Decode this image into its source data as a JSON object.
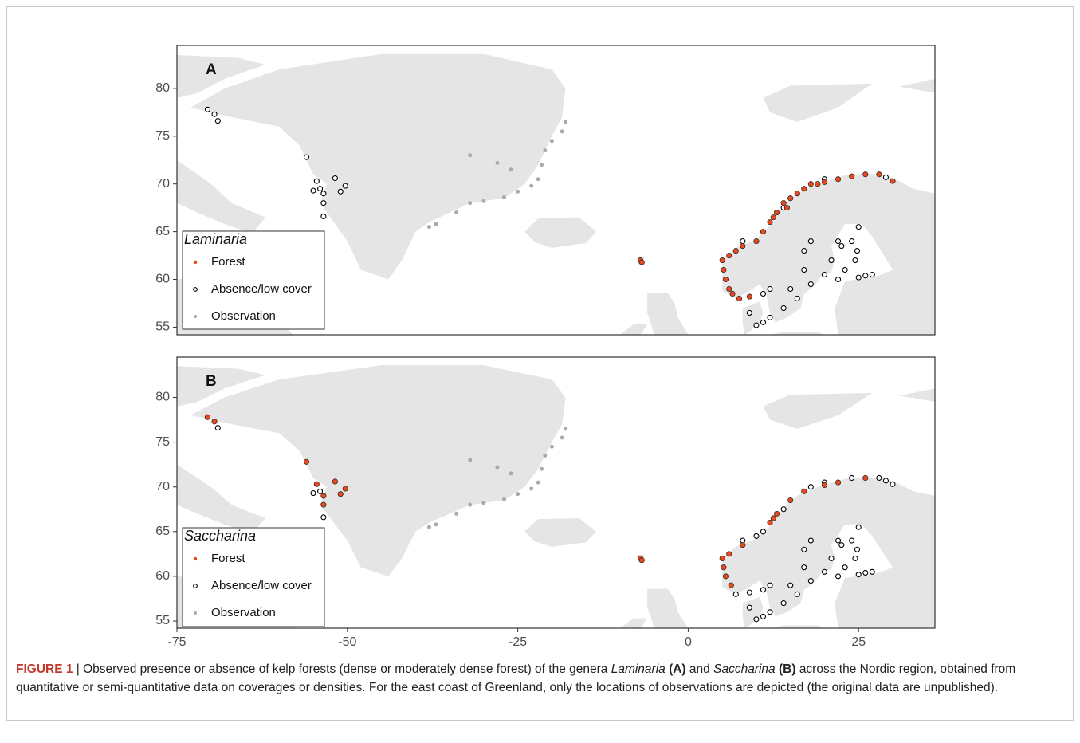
{
  "chart_data": [
    {
      "type": "scatter",
      "panel_label": "A",
      "legend_title": "Laminaria",
      "xlim": [
        -75,
        36.2
      ],
      "ylim": [
        54.2,
        84.5
      ],
      "yticks": [
        55,
        60,
        65,
        70,
        75,
        80
      ],
      "series": [
        {
          "name": "Forest",
          "color": "#e8491d",
          "x": [
            5.5,
            5.2,
            5,
            6,
            7,
            8,
            10,
            11,
            12,
            13,
            14,
            15,
            16,
            17,
            18,
            19,
            20,
            22,
            24,
            26,
            28,
            30,
            6,
            6.5,
            7.5,
            9,
            -7,
            -6.8,
            12.5,
            14.5
          ],
          "values": [
            60,
            61,
            62,
            62.5,
            63,
            63.5,
            64,
            65,
            66,
            67,
            68,
            68.5,
            69,
            69.5,
            70,
            70,
            70.2,
            70.5,
            70.8,
            71,
            71,
            70.3,
            59,
            58.5,
            58,
            58.2,
            62,
            61.8,
            66.5,
            67.5
          ]
        },
        {
          "name": "Absence/low cover",
          "color": "#000000",
          "x": [
            -70.5,
            -69.5,
            -69,
            -56,
            -54.5,
            -54,
            -53.5,
            -53.5,
            -53.5,
            -51.8,
            -51,
            -50.3,
            -55,
            22,
            21,
            20,
            22,
            25,
            27,
            25,
            24,
            24.5,
            17,
            18,
            16,
            14,
            12,
            11,
            10,
            9,
            17,
            18,
            15,
            12,
            11,
            8,
            14,
            20,
            29,
            23,
            26,
            24.8,
            22.5
          ],
          "values": [
            77.8,
            77.3,
            76.6,
            72.8,
            70.3,
            69.5,
            69,
            68,
            66.6,
            70.6,
            69.2,
            69.8,
            69.3,
            64,
            62,
            60.5,
            60,
            60.2,
            60.5,
            65.5,
            64,
            62,
            61,
            59.5,
            58,
            57,
            56,
            55.5,
            55.2,
            56.5,
            63,
            64,
            59,
            59,
            58.5,
            64,
            67.5,
            70.5,
            70.7,
            61,
            60.4,
            63,
            63.5
          ]
        },
        {
          "name": "Observation",
          "color": "#aaaaaa",
          "x": [
            -18,
            -18.5,
            -20,
            -21,
            -21.5,
            -22,
            -23,
            -25,
            -27,
            -30,
            -32,
            -34,
            -37,
            -38,
            -32,
            -28,
            -26
          ],
          "values": [
            76.5,
            75.5,
            74.5,
            73.5,
            72,
            70.5,
            69.8,
            69.2,
            68.6,
            68.2,
            68,
            67,
            65.8,
            65.5,
            73,
            72.2,
            71.5
          ]
        }
      ]
    },
    {
      "type": "scatter",
      "panel_label": "B",
      "legend_title": "Saccharina",
      "xlim": [
        -75,
        36.2
      ],
      "ylim": [
        54.2,
        84.5
      ],
      "yticks": [
        55,
        60,
        65,
        70,
        75,
        80
      ],
      "xticks": [
        -75,
        -50,
        -25,
        0,
        25
      ],
      "series": [
        {
          "name": "Forest",
          "color": "#e8491d",
          "x": [
            -70.5,
            -69.5,
            -56,
            -54.5,
            -53.5,
            -53.5,
            -51.8,
            -51,
            -50.3,
            5.5,
            5.2,
            5,
            6,
            8,
            12,
            13,
            15,
            17,
            20,
            22,
            26,
            -7,
            -6.8,
            12.5,
            6.3
          ],
          "values": [
            77.8,
            77.3,
            72.8,
            70.3,
            69,
            68,
            70.6,
            69.2,
            69.8,
            60,
            61,
            62,
            62.5,
            63.5,
            66,
            67,
            68.5,
            69.5,
            70.2,
            70.5,
            71,
            62,
            61.8,
            66.5,
            59
          ]
        },
        {
          "name": "Absence/low cover",
          "color": "#000000",
          "x": [
            -69,
            -54,
            -53.5,
            -55,
            22,
            21,
            20,
            22,
            25,
            27,
            25,
            24,
            24.5,
            17,
            18,
            16,
            14,
            12,
            11,
            10,
            9,
            17,
            18,
            15,
            12,
            11,
            8,
            14,
            20,
            29,
            23,
            26,
            24.8,
            22.5,
            10,
            11,
            18,
            24,
            28,
            30,
            7,
            9
          ],
          "values": [
            76.6,
            69.5,
            66.6,
            69.3,
            64,
            62,
            60.5,
            60,
            60.2,
            60.5,
            65.5,
            64,
            62,
            61,
            59.5,
            58,
            57,
            56,
            55.5,
            55.2,
            56.5,
            63,
            64,
            59,
            59,
            58.5,
            64,
            67.5,
            70.5,
            70.7,
            61,
            60.4,
            63,
            63.5,
            64.5,
            65,
            70,
            71,
            71,
            70.3,
            58,
            58.2
          ]
        },
        {
          "name": "Observation",
          "color": "#aaaaaa",
          "x": [
            -18,
            -18.5,
            -20,
            -21,
            -21.5,
            -22,
            -23,
            -25,
            -27,
            -30,
            -32,
            -34,
            -37,
            -38,
            -32,
            -28,
            -26
          ],
          "values": [
            76.5,
            75.5,
            74.5,
            73.5,
            72,
            70.5,
            69.8,
            69.2,
            68.6,
            68.2,
            68,
            67,
            65.8,
            65.5,
            73,
            72.2,
            71.5
          ]
        }
      ]
    }
  ],
  "caption": {
    "label": "FIGURE 1",
    "text1": "| Observed presence or absence of kelp forests (dense or moderately dense forest) of the genera",
    "genus1": "Laminaria",
    "panel1": "(A)",
    "and": "and",
    "genus2": "Saccharina",
    "panel2": "(B)",
    "text2": "across the Nordic region, obtained from quantitative or semi-quantitative data on coverages or densities. For the east coast of Greenland, only the locations of observations are depicted (the original data are unpublished)."
  }
}
